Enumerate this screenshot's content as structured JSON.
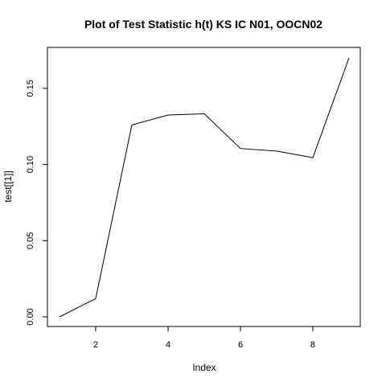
{
  "chart_data": {
    "type": "line",
    "title": "Plot of Test Statistic h(t) KS IC N01, OOCN02",
    "xlabel": "Index",
    "ylabel": "test[[1]]",
    "x": [
      1,
      2,
      3,
      4,
      5,
      6,
      7,
      8,
      9
    ],
    "series": [
      {
        "values": [
          0.0,
          0.012,
          0.126,
          0.1325,
          0.1333,
          0.1105,
          0.1088,
          0.1045,
          0.17
        ]
      }
    ],
    "xlim": [
      1,
      9
    ],
    "ylim": [
      0,
      0.17
    ],
    "x_ticks": [
      2,
      4,
      6,
      8
    ],
    "y_ticks": [
      0.0,
      0.05,
      0.1,
      0.15
    ],
    "x_tick_labels": [
      "2",
      "4",
      "6",
      "8"
    ],
    "y_tick_labels": [
      "0.00",
      "0.05",
      "0.10",
      "0.15"
    ],
    "grid": false,
    "line_color": "#000000"
  }
}
